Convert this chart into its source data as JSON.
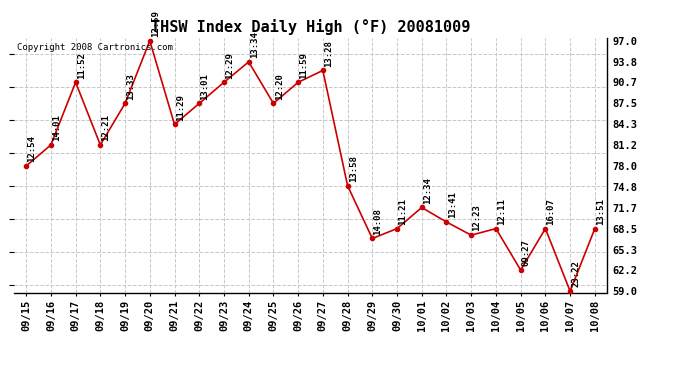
{
  "title": "THSW Index Daily High (°F) 20081009",
  "copyright": "Copyright 2008 Cartronics.com",
  "dates": [
    "09/15",
    "09/16",
    "09/17",
    "09/18",
    "09/19",
    "09/20",
    "09/21",
    "09/22",
    "09/23",
    "09/24",
    "09/25",
    "09/26",
    "09/27",
    "09/28",
    "09/29",
    "09/30",
    "10/01",
    "10/02",
    "10/03",
    "10/04",
    "10/05",
    "10/06",
    "10/07",
    "10/08"
  ],
  "values": [
    78.0,
    81.2,
    90.7,
    81.2,
    87.5,
    97.0,
    84.3,
    87.5,
    90.7,
    93.8,
    87.5,
    90.7,
    92.5,
    75.0,
    67.0,
    68.5,
    71.7,
    69.5,
    67.5,
    68.5,
    62.2,
    68.5,
    59.0,
    68.5
  ],
  "labels": [
    "12:54",
    "14:01",
    "11:52",
    "12:21",
    "13:33",
    "12:59",
    "11:29",
    "13:01",
    "12:29",
    "13:34",
    "12:20",
    "11:59",
    "13:28",
    "13:58",
    "14:08",
    "11:21",
    "12:34",
    "13:41",
    "12:23",
    "12:11",
    "09:27",
    "16:07",
    "23:22",
    "13:51"
  ],
  "ylim": [
    59.0,
    97.0
  ],
  "yticks": [
    59.0,
    62.2,
    65.3,
    68.5,
    71.7,
    74.8,
    78.0,
    81.2,
    84.3,
    87.5,
    90.7,
    93.8,
    97.0
  ],
  "line_color": "#cc0000",
  "marker_color": "#cc0000",
  "bg_color": "#ffffff",
  "grid_color": "#c8c8c8",
  "title_fontsize": 11,
  "label_fontsize": 6.5,
  "copyright_fontsize": 6.5,
  "tick_fontsize": 7.5
}
